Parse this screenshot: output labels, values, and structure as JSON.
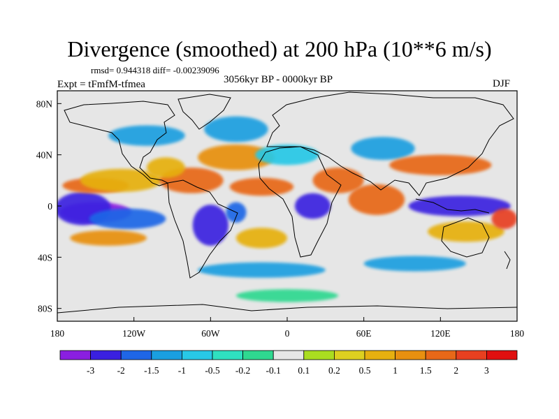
{
  "figure": {
    "title": "Divergence (smoothed) at 200 hPa (10**6 m/s)",
    "stats": "rmsd= 0.944318 diff= -0.00239096",
    "period": "3056kyr BP - 0000kyr BP",
    "experiment": "Expt = tFmfM-tfmea",
    "season": "DJF"
  },
  "chart_data": {
    "type": "heatmap",
    "title": "Divergence (smoothed) at 200 hPa (10**6 m/s)",
    "x_range": [
      -180,
      180
    ],
    "y_range": [
      -90,
      90
    ],
    "x_ticks": [
      {
        "value": -180,
        "label": "180"
      },
      {
        "value": -120,
        "label": "120W"
      },
      {
        "value": -60,
        "label": "60W"
      },
      {
        "value": 0,
        "label": "0"
      },
      {
        "value": 60,
        "label": "60E"
      },
      {
        "value": 120,
        "label": "120E"
      },
      {
        "value": 180,
        "label": "180"
      }
    ],
    "y_ticks": [
      {
        "value": 80,
        "label": "80N"
      },
      {
        "value": 40,
        "label": "40N"
      },
      {
        "value": 0,
        "label": "0"
      },
      {
        "value": -40,
        "label": "40S"
      },
      {
        "value": -80,
        "label": "80S"
      }
    ],
    "colorbar": {
      "colors": [
        "#8a1fe0",
        "#3a20e0",
        "#1f66e6",
        "#1a9fe0",
        "#28c8e6",
        "#2fe0c0",
        "#2fd890",
        "#e6e6e6",
        "#aadd20",
        "#ddd020",
        "#e6b010",
        "#e89010",
        "#e86818",
        "#e84020",
        "#e01010"
      ],
      "labels": [
        "-3",
        "-2",
        "-1.5",
        "-1",
        "-0.5",
        "-0.2",
        "-0.1",
        "0.1",
        "0.2",
        "0.5",
        "1",
        "1.5",
        "2",
        "3"
      ]
    },
    "blobs": [
      {
        "lon": -150,
        "lat": -5,
        "rlon": 28,
        "rlat": 8,
        "level": 0
      },
      {
        "lon": -160,
        "lat": -2,
        "rlon": 22,
        "rlat": 13,
        "level": 1
      },
      {
        "lon": -125,
        "lat": -10,
        "rlon": 30,
        "rlat": 8,
        "level": 2
      },
      {
        "lon": -150,
        "lat": 16,
        "rlon": 26,
        "rlat": 6,
        "level": 12
      },
      {
        "lon": -130,
        "lat": 20,
        "rlon": 32,
        "rlat": 9,
        "level": 10
      },
      {
        "lon": -140,
        "lat": -25,
        "rlon": 30,
        "rlat": 6,
        "level": 11
      },
      {
        "lon": -60,
        "lat": -15,
        "rlon": 14,
        "rlat": 16,
        "level": 1
      },
      {
        "lon": -40,
        "lat": -5,
        "rlon": 8,
        "rlat": 8,
        "level": 2
      },
      {
        "lon": -75,
        "lat": 20,
        "rlon": 25,
        "rlat": 10,
        "level": 12
      },
      {
        "lon": -95,
        "lat": 30,
        "rlon": 15,
        "rlat": 8,
        "level": 10
      },
      {
        "lon": -110,
        "lat": 55,
        "rlon": 30,
        "rlat": 8,
        "level": 3
      },
      {
        "lon": -40,
        "lat": 38,
        "rlon": 30,
        "rlat": 10,
        "level": 11
      },
      {
        "lon": -40,
        "lat": 60,
        "rlon": 25,
        "rlat": 10,
        "level": 3
      },
      {
        "lon": -20,
        "lat": 15,
        "rlon": 25,
        "rlat": 7,
        "level": 12
      },
      {
        "lon": 20,
        "lat": 0,
        "rlon": 14,
        "rlat": 10,
        "level": 1
      },
      {
        "lon": 0,
        "lat": 40,
        "rlon": 25,
        "rlat": 8,
        "level": 4
      },
      {
        "lon": 40,
        "lat": 20,
        "rlon": 20,
        "rlat": 10,
        "level": 12
      },
      {
        "lon": 70,
        "lat": 5,
        "rlon": 22,
        "rlat": 12,
        "level": 12
      },
      {
        "lon": 75,
        "lat": 45,
        "rlon": 25,
        "rlat": 9,
        "level": 3
      },
      {
        "lon": 135,
        "lat": 0,
        "rlon": 40,
        "rlat": 8,
        "level": 1
      },
      {
        "lon": 120,
        "lat": 32,
        "rlon": 40,
        "rlat": 8,
        "level": 12
      },
      {
        "lon": 140,
        "lat": -20,
        "rlon": 30,
        "rlat": 8,
        "level": 10
      },
      {
        "lon": 170,
        "lat": -10,
        "rlon": 10,
        "rlat": 8,
        "level": 13
      },
      {
        "lon": 100,
        "lat": -45,
        "rlon": 40,
        "rlat": 6,
        "level": 3
      },
      {
        "lon": -20,
        "lat": -50,
        "rlon": 50,
        "rlat": 6,
        "level": 3
      },
      {
        "lon": 0,
        "lat": -70,
        "rlon": 40,
        "rlat": 5,
        "level": 6
      },
      {
        "lon": -20,
        "lat": -25,
        "rlon": 20,
        "rlat": 8,
        "level": 10
      }
    ]
  }
}
